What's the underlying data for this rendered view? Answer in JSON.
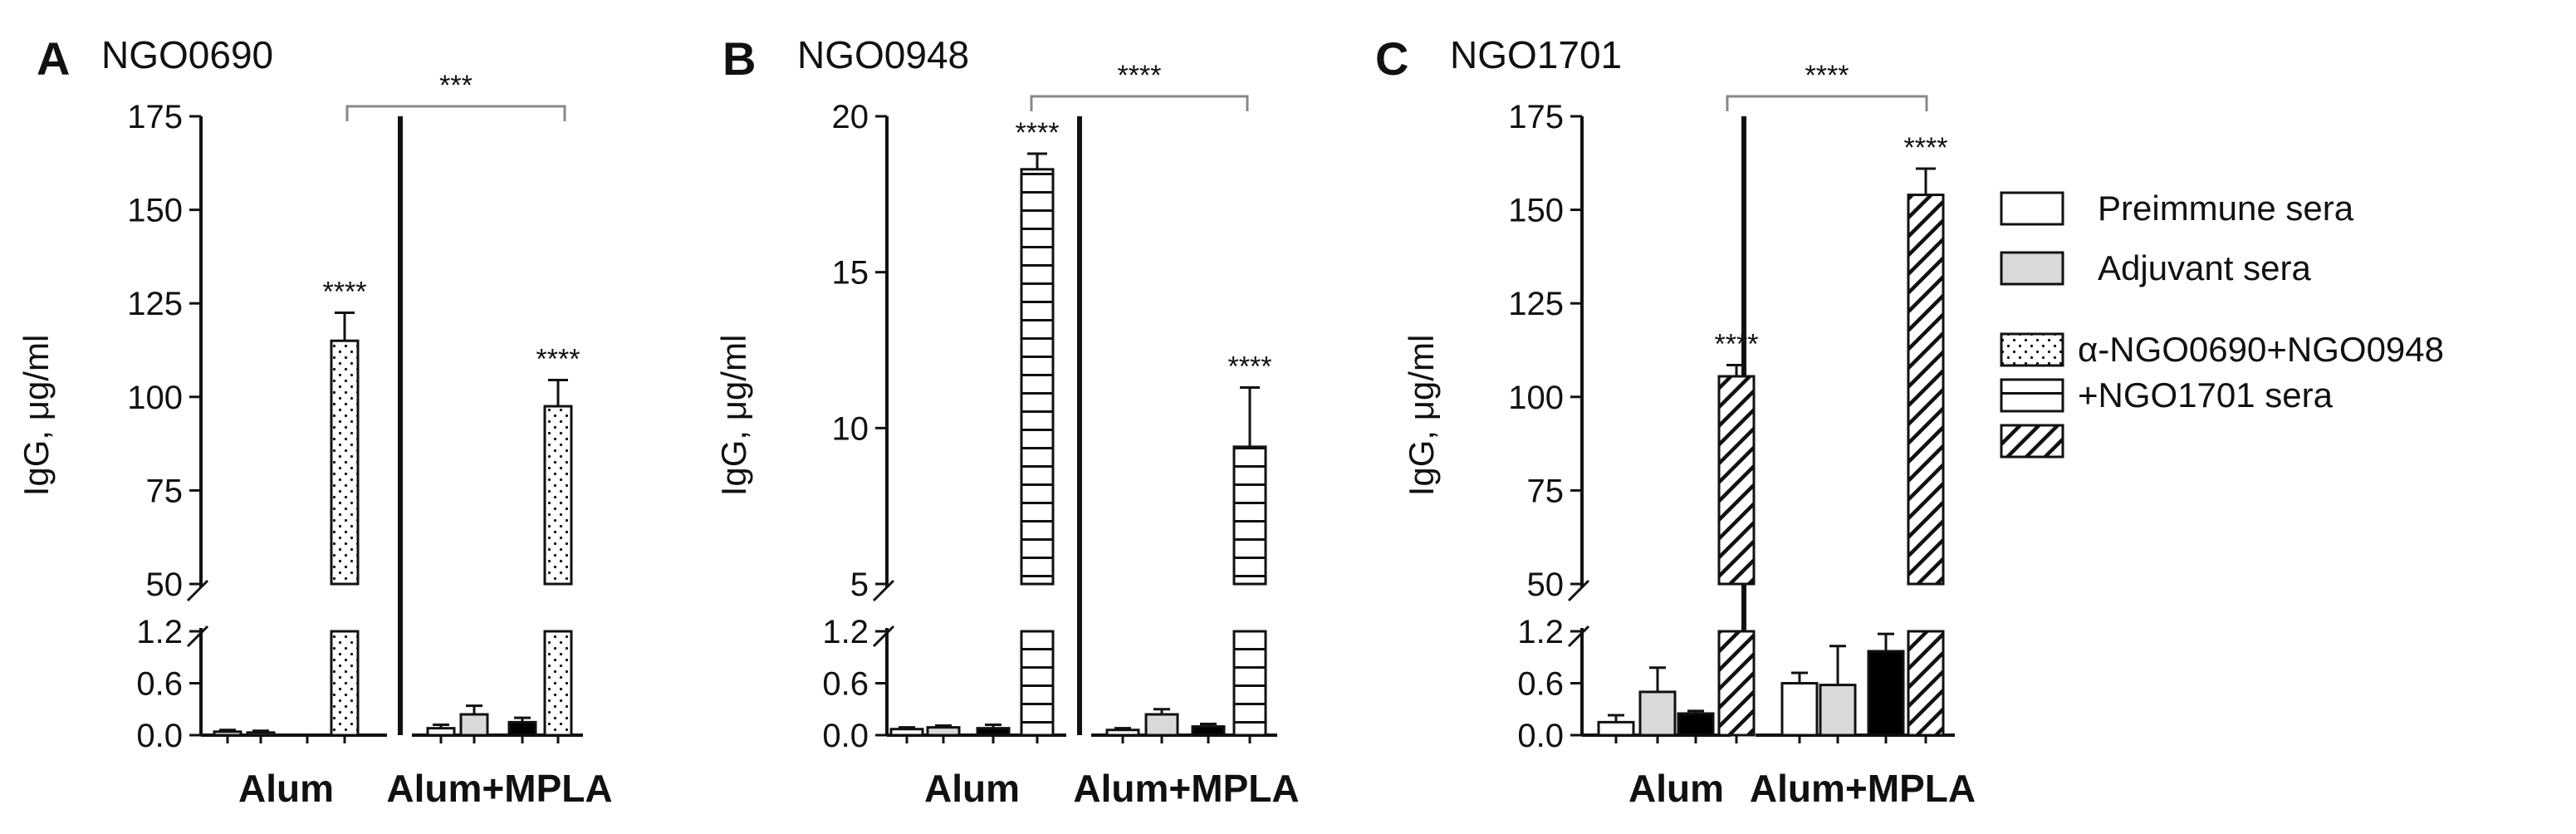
{
  "chart_data": [
    {
      "type": "bar",
      "panel": "A",
      "title": "NGO0690",
      "ylabel": "IgG, μg/ml",
      "y_axis": {
        "broken": true,
        "lower_segment": {
          "range": [
            0,
            1.2
          ],
          "ticks": [
            "0.0",
            "0.6",
            "1.2"
          ]
        },
        "upper_segment": {
          "range": [
            50,
            175
          ],
          "ticks": [
            "50",
            "75",
            "100",
            "125",
            "150",
            "175"
          ]
        }
      },
      "categories": [
        "Alum",
        "Alum+MPLA"
      ],
      "series": [
        {
          "name": "Preimmune sera",
          "values": [
            0.04,
            0.08
          ],
          "errors": [
            0.02,
            0.04
          ]
        },
        {
          "name": "Adjuvant sera",
          "values": [
            0.03,
            0.24
          ],
          "errors": [
            0.02,
            0.1
          ]
        },
        {
          "name": "",
          "values": [
            0.0,
            0.15
          ],
          "errors": [
            0.0,
            0.05
          ]
        },
        {
          "name": "α-NGO0690+NGO0948 +NGO1701 sera",
          "values": [
            115,
            97.5
          ],
          "errors": [
            7.5,
            7
          ]
        }
      ],
      "significance": {
        "bars": [
          "****",
          "****"
        ],
        "bracket": "***"
      }
    },
    {
      "type": "bar",
      "panel": "B",
      "title": "NGO0948",
      "ylabel": "IgG, μg/ml",
      "y_axis": {
        "broken": true,
        "lower_segment": {
          "range": [
            0,
            1.2
          ],
          "ticks": [
            "0.0",
            "0.6",
            "1.2"
          ]
        },
        "upper_segment": {
          "range": [
            5,
            20
          ],
          "ticks": [
            "5",
            "10",
            "15",
            "20"
          ]
        }
      },
      "categories": [
        "Alum",
        "Alum+MPLA"
      ],
      "series": [
        {
          "name": "Preimmune sera",
          "values": [
            0.07,
            0.06
          ],
          "errors": [
            0.02,
            0.02
          ]
        },
        {
          "name": "Adjuvant sera",
          "values": [
            0.09,
            0.24
          ],
          "errors": [
            0.02,
            0.06
          ]
        },
        {
          "name": "",
          "values": [
            0.08,
            0.1
          ],
          "errors": [
            0.04,
            0.03
          ]
        },
        {
          "name": "α-NGO0690+NGO0948 +NGO1701 sera",
          "values": [
            18.3,
            9.4
          ],
          "errors": [
            0.5,
            1.9
          ]
        }
      ],
      "significance": {
        "bars": [
          "****",
          "****"
        ],
        "bracket": "****"
      }
    },
    {
      "type": "bar",
      "panel": "C",
      "title": "NGO1701",
      "ylabel": "IgG, μg/ml",
      "y_axis": {
        "broken": true,
        "lower_segment": {
          "range": [
            0,
            1.2
          ],
          "ticks": [
            "0.0",
            "0.6",
            "1.2"
          ]
        },
        "upper_segment": {
          "range": [
            50,
            175
          ],
          "ticks": [
            "50",
            "75",
            "100",
            "125",
            "150",
            "175"
          ]
        }
      },
      "categories": [
        "Alum",
        "Alum+MPLA"
      ],
      "series": [
        {
          "name": "Preimmune sera",
          "values": [
            0.15,
            0.6
          ],
          "errors": [
            0.08,
            0.12
          ]
        },
        {
          "name": "Adjuvant sera",
          "values": [
            0.5,
            0.58
          ],
          "errors": [
            0.28,
            0.45
          ]
        },
        {
          "name": "",
          "values": [
            0.25,
            0.97
          ],
          "errors": [
            0.03,
            0.2
          ]
        },
        {
          "name": "α-NGO0690+NGO0948 +NGO1701 sera",
          "values": [
            105.5,
            154
          ],
          "errors": [
            3,
            7
          ]
        }
      ],
      "significance": {
        "bars": [
          "****",
          "****"
        ],
        "bracket": "****"
      }
    }
  ],
  "legend": {
    "items": [
      {
        "label": "Preimmune sera",
        "pattern": "plain-white"
      },
      {
        "label": "Adjuvant sera",
        "pattern": "plain-gray"
      },
      {
        "label": "α-NGO0690+NGO0948",
        "pattern": "dots"
      },
      {
        "label": "+NGO1701 sera",
        "pattern": "horizontal-lines"
      },
      {
        "label": "",
        "pattern": "diagonal-lines"
      }
    ]
  },
  "colors": {
    "ink": "#111111",
    "adjuvant_fill": "#d9d9d9",
    "bracket": "#888888"
  }
}
